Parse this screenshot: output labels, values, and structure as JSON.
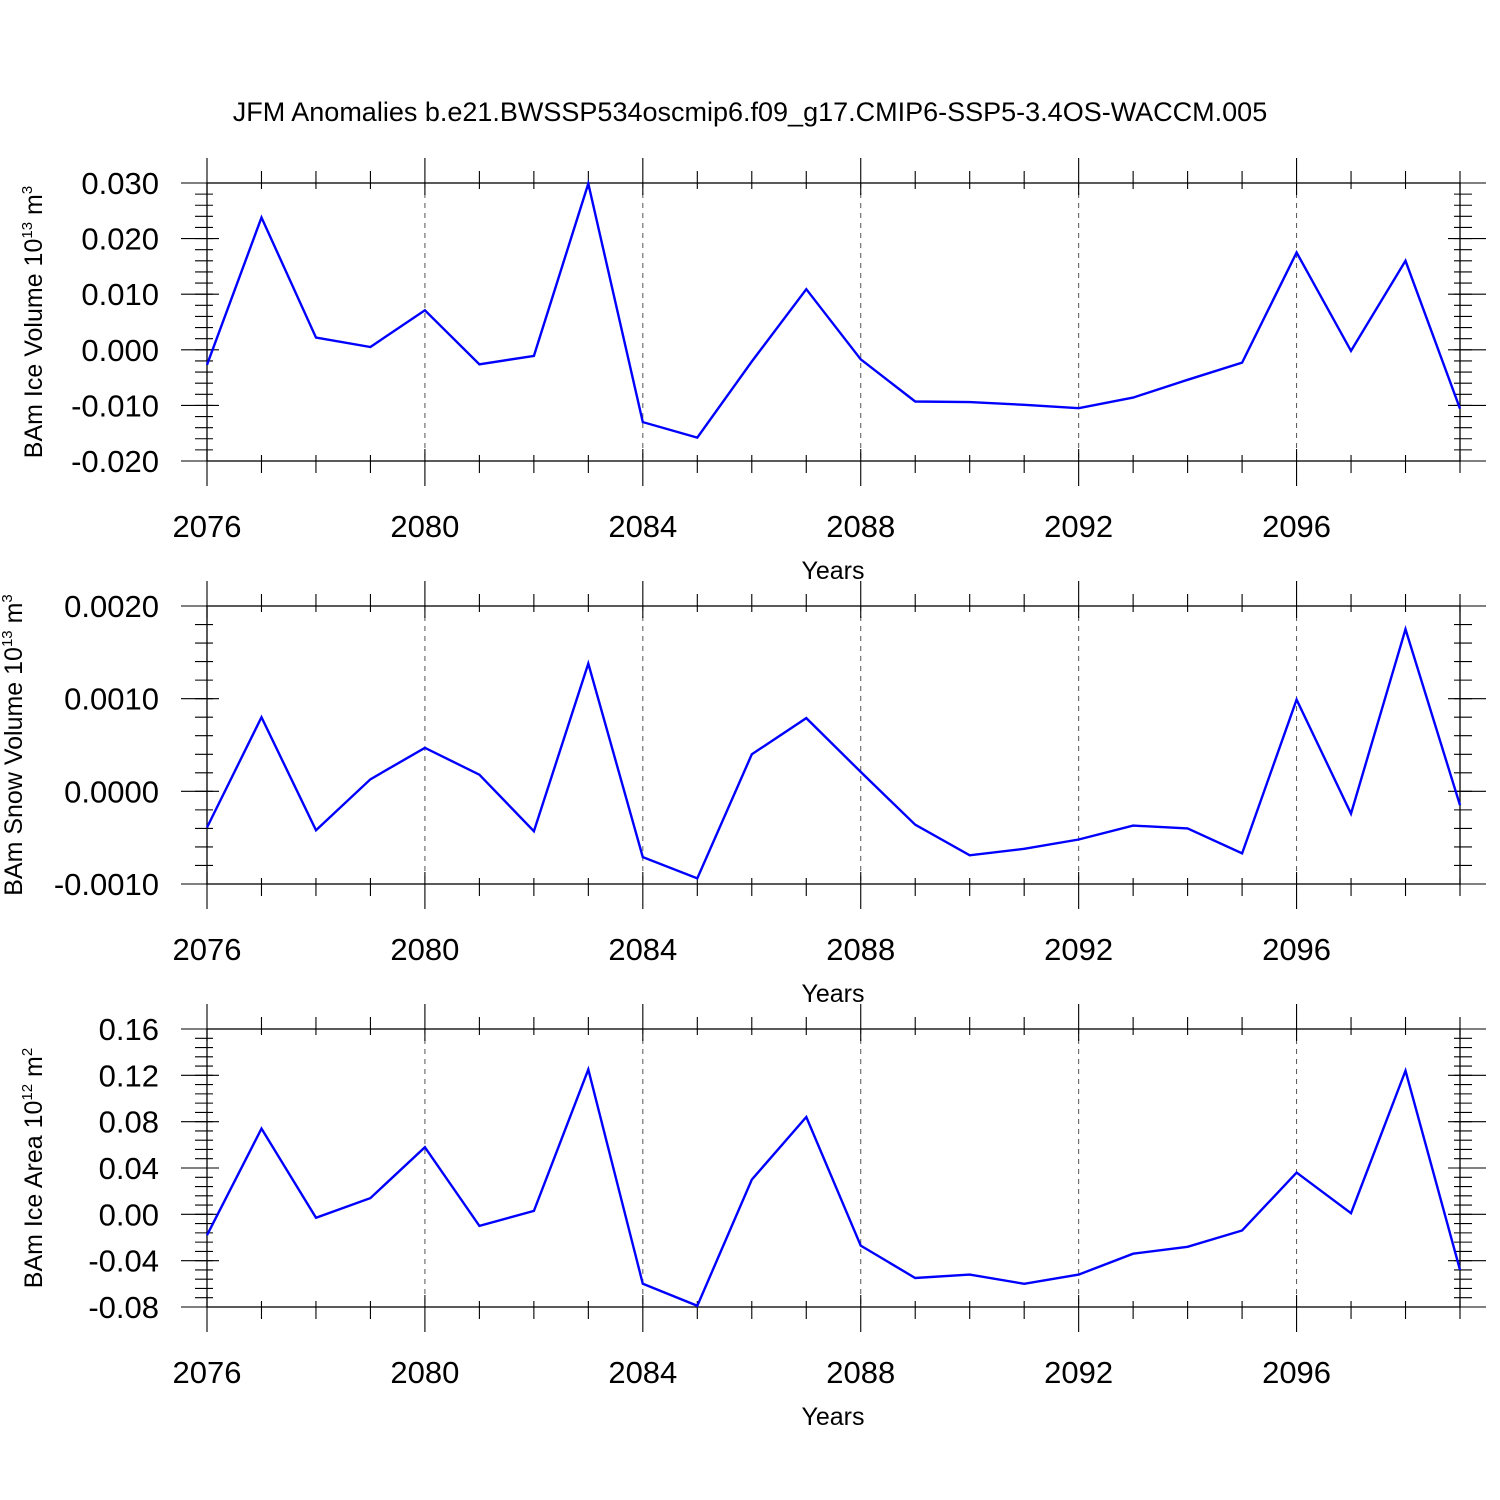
{
  "title": "JFM Anomalies b.e21.BWSSP534oscmip6.f09_g17.CMIP6-SSP5-3.4OS-WACCM.005",
  "colors": {
    "line": "#0000ff",
    "axis": "#000000",
    "grid": "#555555"
  },
  "chart_data": [
    {
      "type": "line",
      "name": "ice-volume",
      "ylabel_main": "BAm Ice Volume 10",
      "ylabel_exp": "13",
      "ylabel_unit": " m",
      "ylabel_unit_exp": "3",
      "xlabel": "Years",
      "xlim": [
        2076,
        2099
      ],
      "ylim": [
        -0.02,
        0.03
      ],
      "x_ticks": [
        "2076",
        "2080",
        "2084",
        "2088",
        "2092",
        "2096"
      ],
      "y_ticks": [
        {
          "value": -0.02,
          "label": "-0.020"
        },
        {
          "value": -0.01,
          "label": "-0.010"
        },
        {
          "value": 0.0,
          "label": "0.000"
        },
        {
          "value": 0.01,
          "label": "0.010"
        },
        {
          "value": 0.02,
          "label": "0.020"
        },
        {
          "value": 0.03,
          "label": "0.030"
        }
      ],
      "y_minor_step": 0.002,
      "x": [
        2076,
        2077,
        2078,
        2079,
        2080,
        2081,
        2082,
        2083,
        2084,
        2085,
        2086,
        2087,
        2088,
        2089,
        2090,
        2091,
        2092,
        2093,
        2094,
        2095,
        2096,
        2097,
        2098,
        2099
      ],
      "values": [
        -0.0027,
        0.0238,
        0.0022,
        0.0005,
        0.0071,
        -0.0026,
        -0.0011,
        0.0299,
        -0.013,
        -0.0158,
        -0.0021,
        0.0109,
        -0.0017,
        -0.0093,
        -0.0094,
        -0.0099,
        -0.0105,
        -0.0086,
        -0.0054,
        -0.0023,
        0.0175,
        -0.0002,
        0.016,
        -0.0106
      ]
    },
    {
      "type": "line",
      "name": "snow-volume",
      "ylabel_main": "BAm Snow Volume 10",
      "ylabel_exp": "13",
      "ylabel_unit": " m",
      "ylabel_unit_exp": "3",
      "xlabel": "Years",
      "xlim": [
        2076,
        2099
      ],
      "ylim": [
        -0.001,
        0.002
      ],
      "x_ticks": [
        "2076",
        "2080",
        "2084",
        "2088",
        "2092",
        "2096"
      ],
      "y_ticks": [
        {
          "value": -0.001,
          "label": "-0.0010"
        },
        {
          "value": 0.0,
          "label": "0.0000"
        },
        {
          "value": 0.001,
          "label": "0.0010"
        },
        {
          "value": 0.002,
          "label": "0.0020"
        }
      ],
      "y_minor_step": 0.0002,
      "x": [
        2076,
        2077,
        2078,
        2079,
        2080,
        2081,
        2082,
        2083,
        2084,
        2085,
        2086,
        2087,
        2088,
        2089,
        2090,
        2091,
        2092,
        2093,
        2094,
        2095,
        2096,
        2097,
        2098,
        2099
      ],
      "values": [
        -0.00039,
        0.0008,
        -0.00042,
        0.00013,
        0.00047,
        0.00018,
        -0.00043,
        0.00138,
        -0.00071,
        -0.00094,
        0.0004,
        0.00079,
        0.00021,
        -0.00036,
        -0.00069,
        -0.00062,
        -0.00052,
        -0.00037,
        -0.0004,
        -0.00067,
        0.00099,
        -0.00024,
        0.00175,
        -0.00015
      ]
    },
    {
      "type": "line",
      "name": "ice-area",
      "ylabel_main": "BAm Ice Area 10",
      "ylabel_exp": "12",
      "ylabel_unit": " m",
      "ylabel_unit_exp": "2",
      "xlabel": "Years",
      "xlim": [
        2076,
        2099
      ],
      "ylim": [
        -0.08,
        0.16
      ],
      "x_ticks": [
        "2076",
        "2080",
        "2084",
        "2088",
        "2092",
        "2096"
      ],
      "y_ticks": [
        {
          "value": -0.08,
          "label": "-0.08"
        },
        {
          "value": -0.04,
          "label": "-0.04"
        },
        {
          "value": 0.0,
          "label": "0.00"
        },
        {
          "value": 0.04,
          "label": "0.04"
        },
        {
          "value": 0.08,
          "label": "0.08"
        },
        {
          "value": 0.12,
          "label": "0.12"
        },
        {
          "value": 0.16,
          "label": "0.16"
        }
      ],
      "y_minor_step": 0.008,
      "x": [
        2076,
        2077,
        2078,
        2079,
        2080,
        2081,
        2082,
        2083,
        2084,
        2085,
        2086,
        2087,
        2088,
        2089,
        2090,
        2091,
        2092,
        2093,
        2094,
        2095,
        2096,
        2097,
        2098,
        2099
      ],
      "values": [
        -0.018,
        0.074,
        -0.003,
        0.014,
        0.058,
        -0.01,
        0.003,
        0.125,
        -0.06,
        -0.079,
        0.03,
        0.084,
        -0.027,
        -0.055,
        -0.052,
        -0.06,
        -0.052,
        -0.034,
        -0.028,
        -0.014,
        0.036,
        0.001,
        0.124,
        -0.048
      ]
    }
  ]
}
